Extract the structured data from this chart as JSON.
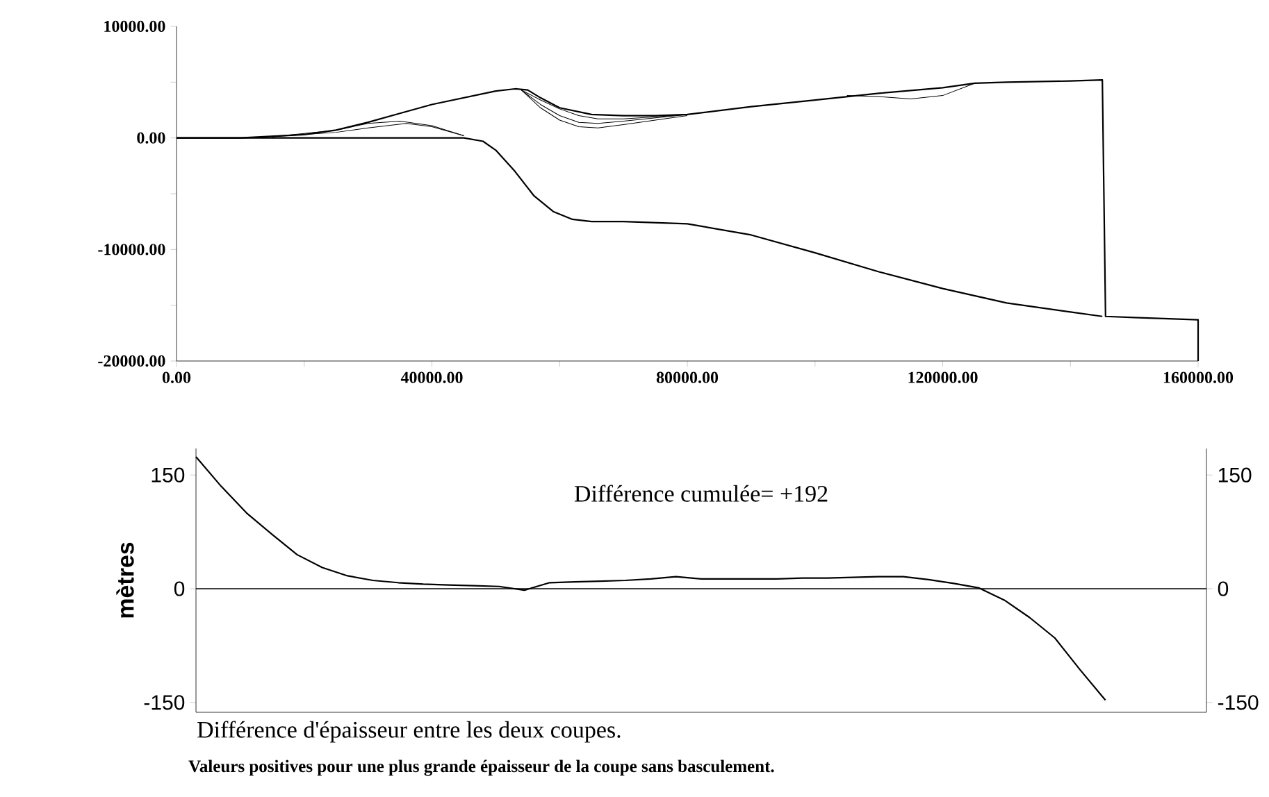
{
  "chart_data": [
    {
      "type": "line",
      "marker": "none",
      "xlim": [
        0,
        160000
      ],
      "ylim": [
        -20000,
        10000
      ],
      "xticks": [
        {
          "value": 0,
          "label": "0.00"
        },
        {
          "value": 20000,
          "label": null
        },
        {
          "value": 40000,
          "label": "40000.00"
        },
        {
          "value": 60000,
          "label": null
        },
        {
          "value": 80000,
          "label": "80000.00"
        },
        {
          "value": 100000,
          "label": null
        },
        {
          "value": 120000,
          "label": "120000.00"
        },
        {
          "value": 140000,
          "label": null
        },
        {
          "value": 160000,
          "label": "160000.00"
        }
      ],
      "yticks": [
        {
          "value": -20000,
          "label": "-20000.00"
        },
        {
          "value": -15000,
          "label": null
        },
        {
          "value": -10000,
          "label": "-10000.00"
        },
        {
          "value": -5000,
          "label": null
        },
        {
          "value": 0,
          "label": "0.00"
        },
        {
          "value": 5000,
          "label": null
        },
        {
          "value": 10000,
          "label": "10000.00"
        }
      ],
      "series": [
        {
          "color": "#000000",
          "x": [
            0,
            10000,
            20000,
            25000,
            30000,
            35000,
            40000,
            45000,
            50000,
            53000,
            55000,
            57000,
            60000,
            65000,
            70000,
            75000,
            80000,
            90000,
            100000,
            110000,
            120000,
            125000,
            130000,
            140000,
            145000,
            145500,
            150000,
            160000,
            160000
          ],
          "values": [
            0,
            0,
            300,
            700,
            1400,
            2200,
            3000,
            3600,
            4200,
            4400,
            4300,
            3600,
            2700,
            2100,
            2000,
            2000,
            2100,
            2800,
            3400,
            4000,
            4500,
            4900,
            5000,
            5100,
            5200,
            -16000,
            -16100,
            -16300,
            -20000
          ]
        },
        {
          "color": "#000000",
          "x": [
            0,
            45000,
            48000,
            50000,
            53000,
            56000,
            59000,
            62000,
            65000,
            70000,
            80000,
            90000,
            100000,
            110000,
            120000,
            130000,
            140000,
            145000
          ],
          "values": [
            0,
            0,
            -300,
            -1100,
            -3000,
            -5200,
            -6600,
            -7300,
            -7500,
            -7500,
            -7700,
            -8700,
            -10300,
            -12000,
            -13500,
            -14800,
            -15600,
            -16000
          ]
        },
        {
          "color": "#000000",
          "x": [
            54000,
            57000,
            60000,
            63000,
            66000,
            70000,
            75000,
            80000
          ],
          "values": [
            4300,
            2700,
            1600,
            1000,
            900,
            1200,
            1600,
            2000
          ]
        },
        {
          "color": "#000000",
          "x": [
            54000,
            57000,
            60000,
            63000,
            66000,
            70000,
            75000,
            80000
          ],
          "values": [
            4300,
            3000,
            2000,
            1400,
            1300,
            1500,
            1800,
            2100
          ]
        },
        {
          "color": "#000000",
          "x": [
            54000,
            57000,
            60000,
            63000,
            66000,
            70000,
            75000,
            78000
          ],
          "values": [
            4300,
            3400,
            2600,
            2000,
            1700,
            1700,
            1900,
            2000
          ]
        },
        {
          "color": "#000000",
          "x": [
            105000,
            110000,
            115000,
            120000,
            125000
          ],
          "values": [
            3800,
            3700,
            3500,
            3800,
            4900
          ]
        },
        {
          "color": "#000000",
          "x": [
            15000,
            25000,
            30000,
            36000,
            40000,
            45000
          ],
          "values": [
            100,
            500,
            900,
            1300,
            1000,
            200
          ]
        },
        {
          "color": "#000000",
          "x": [
            15000,
            25000,
            30000,
            35000,
            40000,
            45000
          ],
          "values": [
            100,
            700,
            1300,
            1500,
            1100,
            200
          ]
        }
      ]
    },
    {
      "type": "line",
      "marker": "none",
      "ylabel": "mètres",
      "tick_labels": "y",
      "categories": [
        null,
        null,
        null,
        null,
        null,
        null,
        null,
        null,
        null,
        null,
        null,
        null,
        null,
        null,
        null,
        null,
        null,
        null,
        null,
        null,
        null,
        null,
        null,
        null,
        null,
        null,
        null,
        null,
        null,
        null,
        null,
        null,
        null,
        null,
        null,
        null,
        null,
        null,
        null,
        null,
        null
      ],
      "ylim": [
        -163,
        185
      ],
      "yticks": [
        -150,
        0,
        150
      ],
      "y2lim": [
        -163,
        185
      ],
      "y2ticks": [
        -150,
        0,
        150
      ],
      "ref_lines": [
        {
          "axis": "y",
          "value": 0
        }
      ],
      "annotations": [
        "Différence cumulée= +192",
        "Différence d'épaisseur entre les deux coupes.",
        "Valeurs positives pour une plus grande épaisseur de la coupe sans basculement."
      ],
      "series": [
        {
          "color": "#000000",
          "values": [
            174,
            135,
            100,
            72,
            45,
            28,
            17,
            11,
            8,
            6,
            5,
            4,
            3,
            -2,
            8,
            9,
            10,
            11,
            13,
            16,
            13,
            13,
            13,
            13,
            14,
            14,
            15,
            16,
            16,
            12,
            7,
            1,
            -15,
            -38,
            -65,
            -107,
            -147,
            null,
            null,
            null,
            null
          ]
        }
      ]
    }
  ]
}
